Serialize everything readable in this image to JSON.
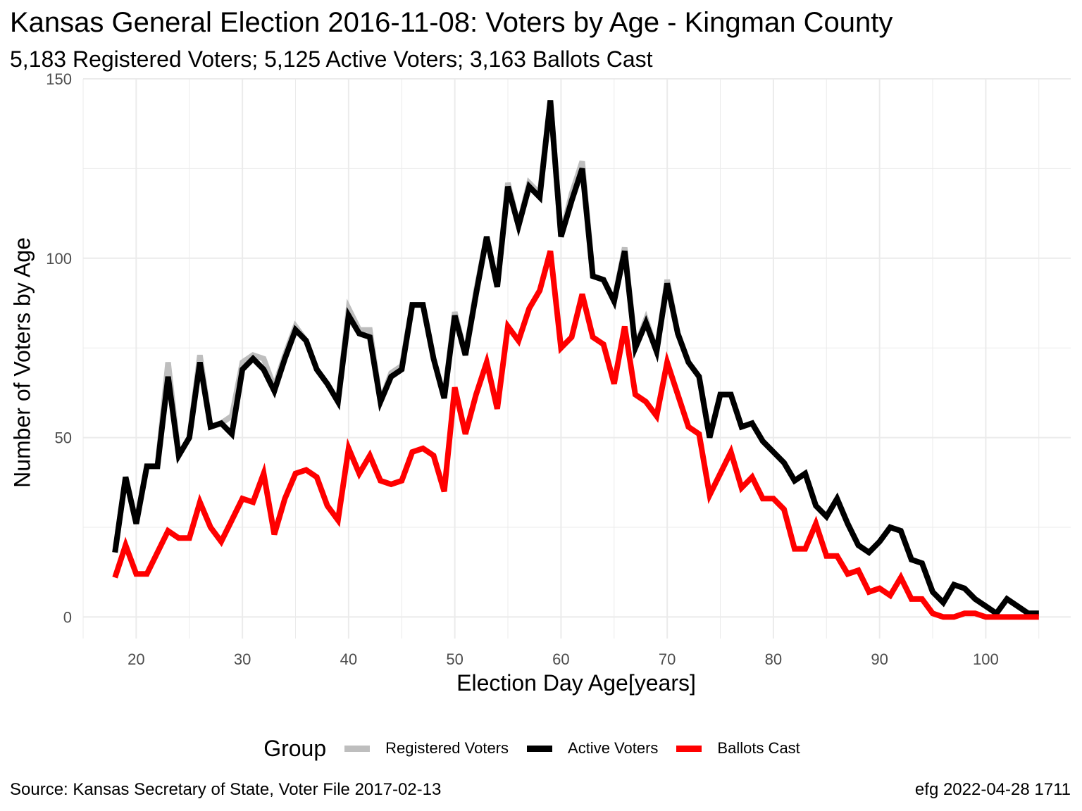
{
  "title": "Kansas General Election 2016-11-08:  Voters by Age - Kingman County",
  "subtitle": "5,183 Registered Voters; 5,125 Active Voters; 3,163 Ballots Cast",
  "footer": {
    "source": "Source:  Kansas Secretary of State, Voter File  2017-02-13",
    "credit": "efg 2022-04-28 1711"
  },
  "legend": {
    "title": "Group"
  },
  "colors": {
    "registered": "#bebebe",
    "active": "#000000",
    "ballots": "#ff0000",
    "grid": "#ebebeb"
  },
  "chart_data": {
    "type": "line",
    "xlabel": "Election Day Age[years]",
    "ylabel": "Number of Voters by Age",
    "xlim": [
      15,
      108
    ],
    "ylim": [
      -6,
      150
    ],
    "xticks": [
      20,
      30,
      40,
      50,
      60,
      70,
      80,
      90,
      100
    ],
    "yticks": [
      0,
      50,
      100,
      150
    ],
    "grid": true,
    "legend_position": "bottom",
    "x": [
      18,
      19,
      20,
      21,
      22,
      23,
      24,
      25,
      26,
      27,
      28,
      29,
      30,
      31,
      32,
      33,
      34,
      35,
      36,
      37,
      38,
      39,
      40,
      41,
      42,
      43,
      44,
      45,
      46,
      47,
      48,
      49,
      50,
      51,
      52,
      53,
      54,
      55,
      56,
      57,
      58,
      59,
      60,
      61,
      62,
      63,
      64,
      65,
      66,
      67,
      68,
      69,
      70,
      71,
      72,
      73,
      74,
      75,
      76,
      77,
      78,
      79,
      80,
      81,
      82,
      83,
      84,
      85,
      86,
      87,
      88,
      89,
      90,
      91,
      92,
      93,
      94,
      95,
      96,
      97,
      98,
      99,
      100,
      101,
      102,
      103,
      104,
      105
    ],
    "series": [
      {
        "name": "Registered Voters",
        "color": "#bebebe",
        "values": [
          18,
          39,
          26,
          42,
          42,
          71,
          45,
          50,
          73,
          53,
          54,
          56,
          71,
          73,
          72,
          64,
          73,
          81,
          77,
          69,
          65,
          60,
          86,
          80,
          80,
          60,
          68,
          70,
          87,
          87,
          72,
          61,
          85,
          73,
          91,
          106,
          92,
          121,
          109,
          121,
          118,
          144,
          106,
          118,
          127,
          95,
          94,
          88,
          103,
          75,
          83,
          74,
          94,
          79,
          71,
          67,
          50,
          62,
          62,
          53,
          54,
          49,
          46,
          43,
          38,
          40,
          31,
          28,
          33,
          26,
          20,
          18,
          21,
          25,
          24,
          16,
          15,
          7,
          4,
          9,
          8,
          5,
          3,
          1,
          5,
          3,
          1,
          1
        ]
      },
      {
        "name": "Active Voters",
        "color": "#000000",
        "values": [
          18,
          39,
          26,
          42,
          42,
          67,
          45,
          50,
          71,
          53,
          54,
          51,
          69,
          72,
          69,
          63,
          72,
          80,
          77,
          69,
          65,
          60,
          84,
          79,
          78,
          60,
          67,
          69,
          87,
          87,
          72,
          61,
          84,
          73,
          90,
          106,
          92,
          120,
          109,
          120,
          117,
          144,
          106,
          116,
          125,
          95,
          94,
          88,
          102,
          75,
          82,
          74,
          93,
          79,
          71,
          67,
          50,
          62,
          62,
          53,
          54,
          49,
          46,
          43,
          38,
          40,
          31,
          28,
          33,
          26,
          20,
          18,
          21,
          25,
          24,
          16,
          15,
          7,
          4,
          9,
          8,
          5,
          3,
          1,
          5,
          3,
          1,
          1
        ]
      },
      {
        "name": "Ballots Cast",
        "color": "#ff0000",
        "values": [
          11,
          20,
          12,
          12,
          18,
          24,
          22,
          22,
          32,
          25,
          21,
          27,
          33,
          32,
          40,
          23,
          33,
          40,
          41,
          39,
          31,
          27,
          47,
          40,
          45,
          38,
          37,
          38,
          46,
          47,
          45,
          35,
          64,
          51,
          62,
          71,
          58,
          81,
          77,
          86,
          91,
          102,
          75,
          78,
          90,
          78,
          76,
          65,
          81,
          62,
          60,
          56,
          71,
          62,
          53,
          51,
          34,
          40,
          46,
          36,
          39,
          33,
          33,
          30,
          19,
          19,
          26,
          17,
          17,
          12,
          13,
          7,
          8,
          6,
          11,
          5,
          5,
          1,
          0,
          0,
          1,
          1,
          0,
          0,
          0,
          0,
          0,
          0
        ]
      }
    ]
  }
}
